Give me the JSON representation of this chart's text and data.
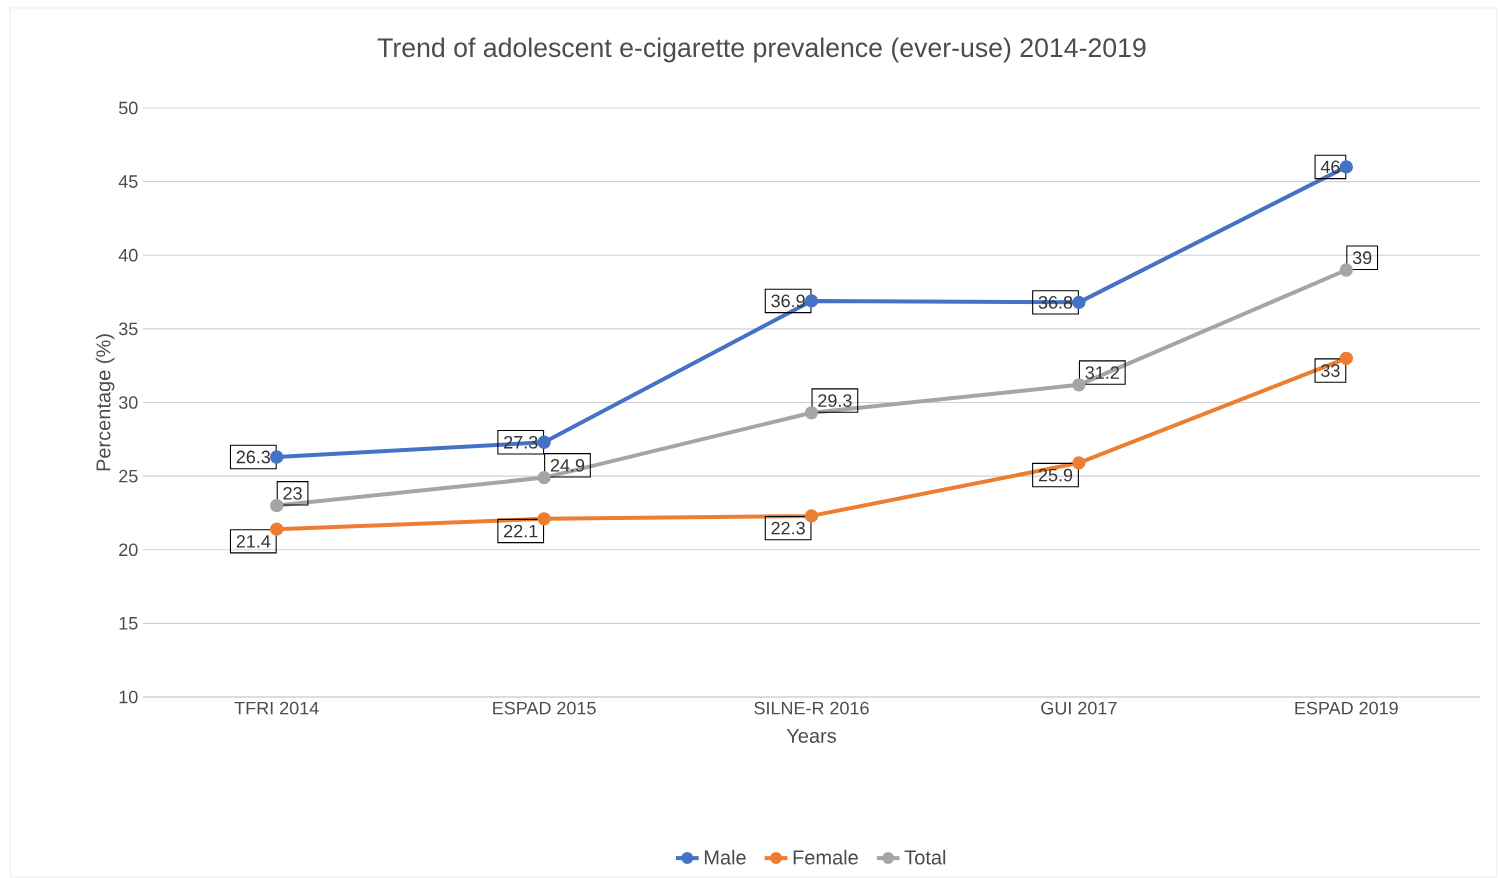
{
  "chart_data": {
    "type": "line",
    "title": "Trend of adolescent e-cigarette prevalence (ever-use) 2014-2019",
    "xlabel": "Years",
    "ylabel": "Percentage (%)",
    "categories": [
      "TFRI 2014",
      "ESPAD 2015",
      "SILNE-R 2016",
      "GUI 2017",
      "ESPAD 2019"
    ],
    "series": [
      {
        "name": "Male",
        "color": "#4472c4",
        "values": [
          26.3,
          27.3,
          36.9,
          36.8,
          46
        ]
      },
      {
        "name": "Female",
        "color": "#ed7d31",
        "values": [
          21.4,
          22.1,
          22.3,
          25.9,
          33
        ]
      },
      {
        "name": "Total",
        "color": "#a5a5a5",
        "values": [
          23,
          24.9,
          29.3,
          31.2,
          39
        ]
      }
    ],
    "ylim": [
      10,
      50
    ],
    "yticks": [
      10,
      15,
      20,
      25,
      30,
      35,
      40,
      45,
      50
    ],
    "grid": "y",
    "legend": "bottom",
    "marker": "circle",
    "line_style": "solid",
    "data_labels": true
  }
}
